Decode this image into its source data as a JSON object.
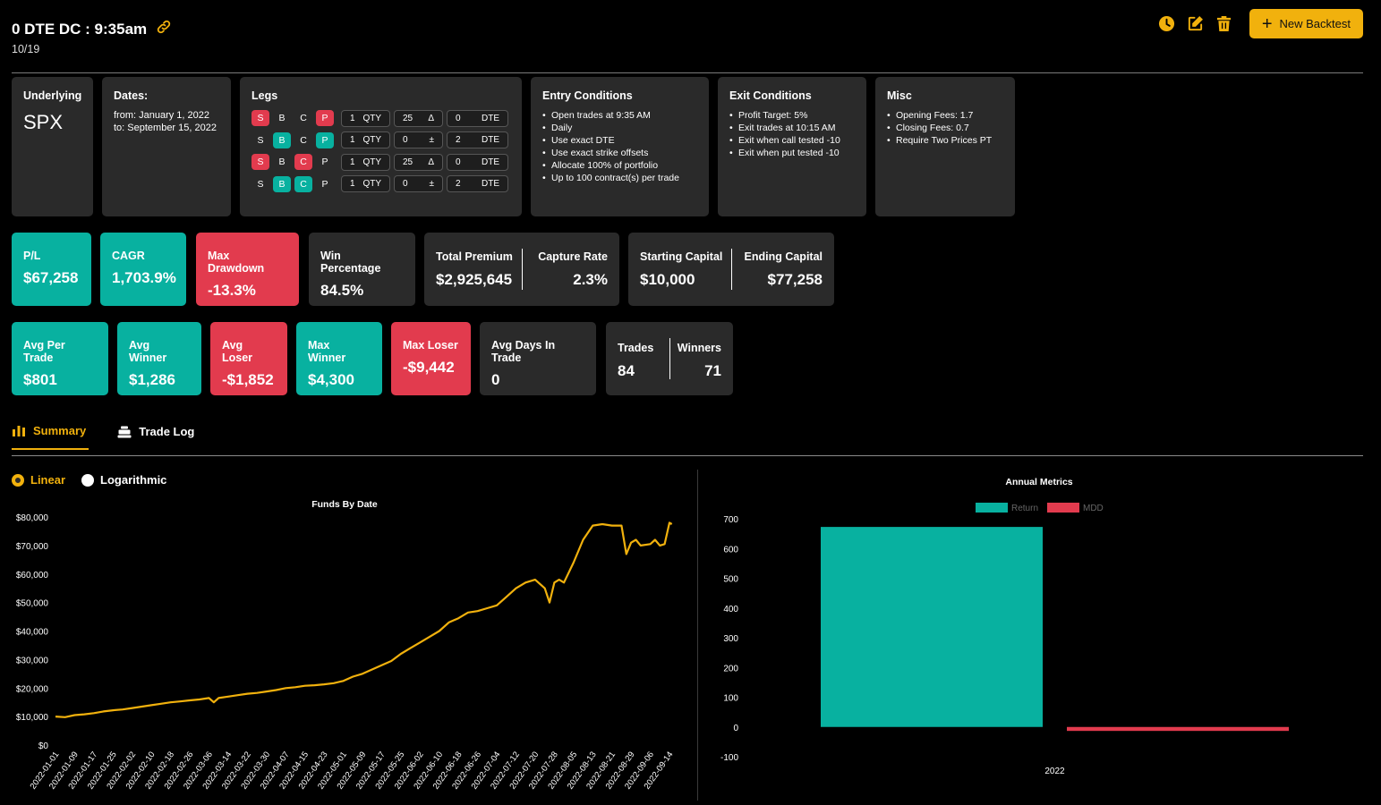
{
  "header": {
    "title": "0 DTE DC : 9:35am",
    "subtitle": "10/19",
    "new_backtest_label": "New Backtest",
    "accent": "#f1b10d"
  },
  "underlying": {
    "title": "Underlying",
    "value": "SPX"
  },
  "dates": {
    "title": "Dates:",
    "from": "from: January 1, 2022",
    "to": "to: September 15, 2022"
  },
  "legs": {
    "title": "Legs",
    "rows": [
      {
        "side": "S",
        "side_on": true,
        "buy": "B",
        "buy_on": false,
        "call": "C",
        "call_on": false,
        "put": "P",
        "put_on": true,
        "color": "red",
        "qty": "1",
        "qty_label": "QTY",
        "strike": "25",
        "strike_symbol": "Δ",
        "dte": "0",
        "dte_label": "DTE"
      },
      {
        "side": "S",
        "side_on": false,
        "buy": "B",
        "buy_on": true,
        "call": "C",
        "call_on": false,
        "put": "P",
        "put_on": true,
        "color": "teal",
        "qty": "1",
        "qty_label": "QTY",
        "strike": "0",
        "strike_symbol": "±",
        "dte": "2",
        "dte_label": "DTE"
      },
      {
        "side": "S",
        "side_on": true,
        "buy": "B",
        "buy_on": false,
        "call": "C",
        "call_on": true,
        "put": "P",
        "put_on": false,
        "color": "red",
        "qty": "1",
        "qty_label": "QTY",
        "strike": "25",
        "strike_symbol": "Δ",
        "dte": "0",
        "dte_label": "DTE"
      },
      {
        "side": "S",
        "side_on": false,
        "buy": "B",
        "buy_on": true,
        "call": "C",
        "call_on": true,
        "put": "P",
        "put_on": false,
        "color": "teal",
        "qty": "1",
        "qty_label": "QTY",
        "strike": "0",
        "strike_symbol": "±",
        "dte": "2",
        "dte_label": "DTE"
      }
    ]
  },
  "entry": {
    "title": "Entry Conditions",
    "items": [
      "Open trades at 9:35 AM",
      "Daily",
      "Use exact DTE",
      "Use exact strike offsets",
      "Allocate 100% of portfolio",
      "Up to 100 contract(s) per trade"
    ]
  },
  "exit": {
    "title": "Exit Conditions",
    "items": [
      "Profit Target: 5%",
      "Exit trades at 10:15 AM",
      "Exit when call tested -10",
      "Exit when put tested -10"
    ]
  },
  "misc": {
    "title": "Misc",
    "items": [
      "Opening Fees: 1.7",
      "Closing Fees: 0.7",
      "Require Two Prices PT"
    ]
  },
  "stats1": {
    "pl": {
      "label": "P/L",
      "value": "$67,258"
    },
    "cagr": {
      "label": "CAGR",
      "value": "1,703.9%"
    },
    "max_dd": {
      "label": "Max Drawdown",
      "value": "-13.3%"
    },
    "win_pct": {
      "label": "Win Percentage",
      "value": "84.5%"
    },
    "total_premium": {
      "label": "Total Premium",
      "value": "$2,925,645"
    },
    "capture_rate": {
      "label": "Capture Rate",
      "value": "2.3%"
    },
    "starting_capital": {
      "label": "Starting Capital",
      "value": "$10,000"
    },
    "ending_capital": {
      "label": "Ending Capital",
      "value": "$77,258"
    }
  },
  "stats2": {
    "avg_per_trade": {
      "label": "Avg Per Trade",
      "value": "$801"
    },
    "avg_winner": {
      "label": "Avg Winner",
      "value": "$1,286"
    },
    "avg_loser": {
      "label": "Avg Loser",
      "value": "-$1,852"
    },
    "max_winner": {
      "label": "Max Winner",
      "value": "$4,300"
    },
    "max_loser": {
      "label": "Max Loser",
      "value": "-$9,442"
    },
    "avg_days": {
      "label": "Avg Days In Trade",
      "value": "0"
    },
    "trades": {
      "label": "Trades",
      "value": "84"
    },
    "winners": {
      "label": "Winners",
      "value": "71"
    }
  },
  "tabs": {
    "summary": "Summary",
    "trade_log": "Trade Log"
  },
  "scale": {
    "linear": "Linear",
    "log": "Logarithmic",
    "selected": "linear"
  },
  "colors": {
    "teal": "#08b1a0",
    "red": "#e23b4e",
    "card": "#2a2a2a",
    "line": "#f1b10d"
  },
  "chart_data": [
    {
      "type": "line",
      "title": "Funds By Date",
      "xlabel": "",
      "ylabel": "",
      "ylim": [
        0,
        80000
      ],
      "yticks": [
        "$0",
        "$10,000",
        "$20,000",
        "$30,000",
        "$40,000",
        "$50,000",
        "$60,000",
        "$70,000",
        "$80,000"
      ],
      "xticks": [
        "2022-01-01",
        "2022-01-09",
        "2022-01-17",
        "2022-01-25",
        "2022-02-02",
        "2022-02-10",
        "2022-02-18",
        "2022-02-26",
        "2022-03-06",
        "2022-03-14",
        "2022-03-22",
        "2022-03-30",
        "2022-04-07",
        "2022-04-15",
        "2022-04-23",
        "2022-05-01",
        "2022-05-09",
        "2022-05-17",
        "2022-05-25",
        "2022-06-02",
        "2022-06-10",
        "2022-06-18",
        "2022-06-26",
        "2022-07-04",
        "2022-07-12",
        "2022-07-20",
        "2022-07-28",
        "2022-08-05",
        "2022-08-13",
        "2022-08-21",
        "2022-08-29",
        "2022-09-06",
        "2022-09-14"
      ],
      "series": [
        {
          "x": [
            "2022-01-01",
            "2022-01-05",
            "2022-01-09",
            "2022-01-13",
            "2022-01-17",
            "2022-01-21",
            "2022-01-25",
            "2022-01-29",
            "2022-02-02",
            "2022-02-06",
            "2022-02-10",
            "2022-02-14",
            "2022-02-18",
            "2022-02-22",
            "2022-02-26",
            "2022-03-02",
            "2022-03-06",
            "2022-03-08",
            "2022-03-10",
            "2022-03-14",
            "2022-03-18",
            "2022-03-22",
            "2022-03-26",
            "2022-03-30",
            "2022-04-03",
            "2022-04-07",
            "2022-04-11",
            "2022-04-15",
            "2022-04-19",
            "2022-04-23",
            "2022-04-27",
            "2022-05-01",
            "2022-05-05",
            "2022-05-09",
            "2022-05-13",
            "2022-05-17",
            "2022-05-21",
            "2022-05-25",
            "2022-05-29",
            "2022-06-02",
            "2022-06-06",
            "2022-06-10",
            "2022-06-14",
            "2022-06-18",
            "2022-06-22",
            "2022-06-26",
            "2022-06-30",
            "2022-07-04",
            "2022-07-08",
            "2022-07-12",
            "2022-07-16",
            "2022-07-20",
            "2022-07-24",
            "2022-07-26",
            "2022-07-28",
            "2022-07-30",
            "2022-08-01",
            "2022-08-05",
            "2022-08-09",
            "2022-08-13",
            "2022-08-17",
            "2022-08-21",
            "2022-08-25",
            "2022-08-27",
            "2022-08-29",
            "2022-08-31",
            "2022-09-02",
            "2022-09-06",
            "2022-09-08",
            "2022-09-10",
            "2022-09-12",
            "2022-09-14",
            "2022-09-15"
          ],
          "values": [
            10000,
            9800,
            10500,
            10800,
            11200,
            11800,
            12200,
            12500,
            13000,
            13500,
            14000,
            14500,
            15000,
            15300,
            15700,
            16000,
            16500,
            15000,
            16500,
            17000,
            17500,
            18000,
            18300,
            18800,
            19300,
            20000,
            20300,
            20800,
            21000,
            21300,
            21700,
            22500,
            24000,
            25000,
            26500,
            28000,
            29500,
            32000,
            34000,
            36000,
            38000,
            40000,
            43000,
            44500,
            46500,
            47000,
            48000,
            49000,
            52000,
            55000,
            57000,
            58000,
            55000,
            50000,
            57000,
            58000,
            57000,
            64000,
            72000,
            77000,
            77500,
            77000,
            77000,
            67000,
            71000,
            72000,
            70000,
            70500,
            72000,
            70000,
            70500,
            78000,
            77500
          ]
        }
      ]
    },
    {
      "type": "bar",
      "title": "Annual Metrics",
      "categories": [
        "2022"
      ],
      "ylim": [
        -100,
        700
      ],
      "yticks": [
        "-100",
        "0",
        "100",
        "200",
        "300",
        "400",
        "500",
        "600",
        "700"
      ],
      "legend": "top",
      "series": [
        {
          "name": "Return",
          "values": [
            672.6
          ],
          "color": "#08b1a0"
        },
        {
          "name": "MDD",
          "values": [
            -13.3
          ],
          "color": "#e23b4e"
        }
      ]
    }
  ]
}
